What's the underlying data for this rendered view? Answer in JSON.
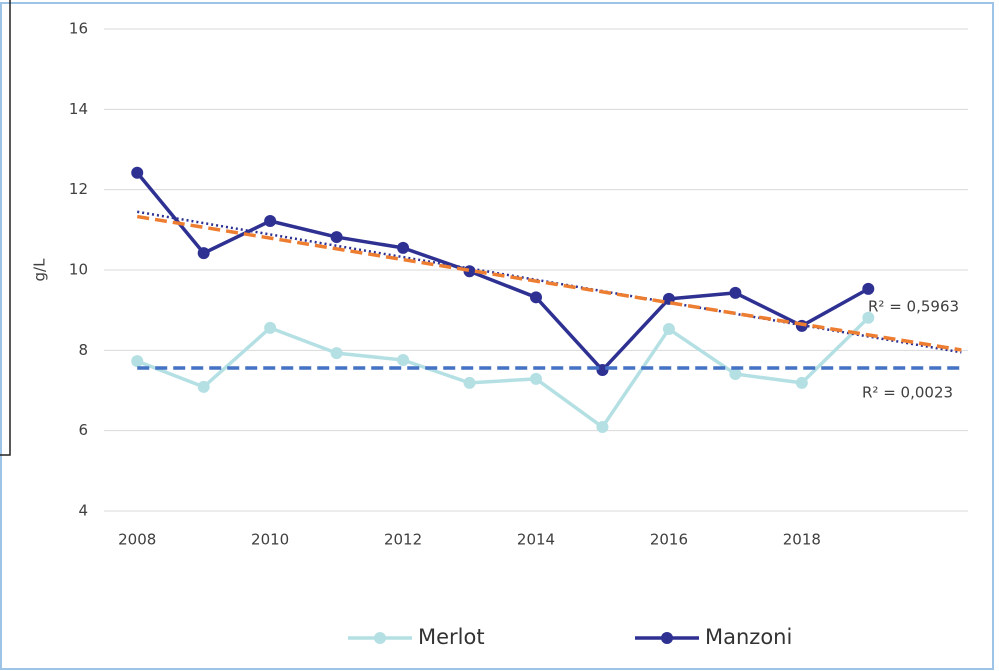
{
  "chart_data": {
    "type": "line",
    "y_label": "g/L",
    "x": [
      2008,
      2009,
      2010,
      2011,
      2012,
      2013,
      2014,
      2015,
      2016,
      2017,
      2018,
      2019
    ],
    "series": [
      {
        "name": "Merlot",
        "color": "#b4e0e4",
        "values": [
          7.73,
          7.09,
          8.56,
          7.93,
          7.76,
          7.19,
          7.29,
          6.09,
          8.53,
          7.41,
          7.19,
          8.81
        ]
      },
      {
        "name": "Manzoni",
        "color": "#2e3192",
        "values": [
          12.42,
          10.42,
          11.22,
          10.82,
          10.55,
          9.97,
          9.32,
          7.51,
          9.28,
          9.43,
          8.61,
          9.53
        ]
      }
    ],
    "trendlines": [
      {
        "color": "#2e3192",
        "style": "dotted",
        "x": [
          2008,
          2020.4
        ],
        "values": [
          11.45,
          7.95
        ]
      },
      {
        "color": "#ed7d31",
        "style": "dashed",
        "x": [
          2008,
          2020.4
        ],
        "values": [
          11.33,
          8.01
        ]
      },
      {
        "color": "#4472c4",
        "style": "dashed",
        "x": [
          2008,
          2020.4
        ],
        "values": [
          7.56,
          7.56
        ]
      }
    ],
    "annotations": [
      "R² = 0,5963",
      "R² = 0,0023"
    ],
    "xlim": [
      2007.5,
      2020.5
    ],
    "xticks": [
      2008,
      2010,
      2012,
      2014,
      2016,
      2018
    ],
    "ylim": [
      4,
      16
    ],
    "yticks": [
      4,
      6,
      8,
      10,
      12,
      14,
      16
    ],
    "grid": true
  }
}
